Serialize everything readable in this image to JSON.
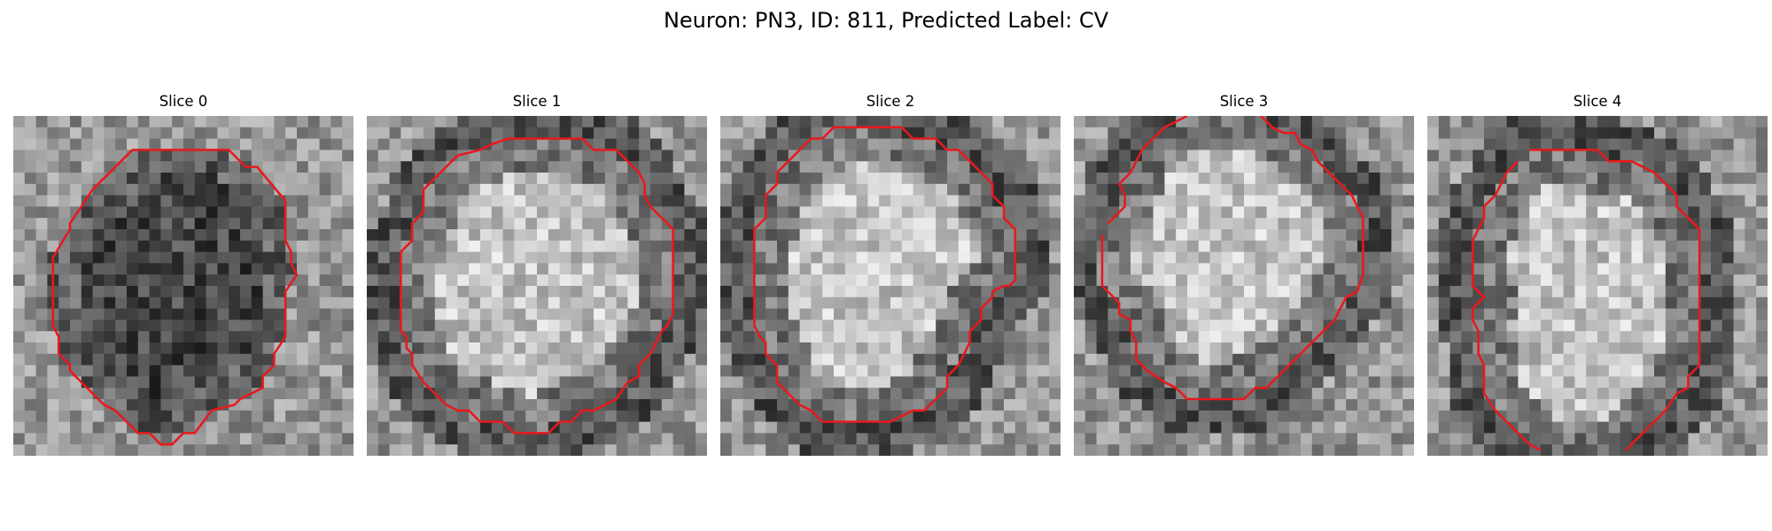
{
  "figure": {
    "title": "Neuron: PN3, ID: 811, Predicted Label: CV"
  },
  "slices": [
    {
      "title": "Slice 0",
      "interior_tone": "dark",
      "contour": [
        [
          10.5,
          3
        ],
        [
          19,
          3
        ],
        [
          20.5,
          4.5
        ],
        [
          21.5,
          4.5
        ],
        [
          24,
          7.5
        ],
        [
          24,
          11
        ],
        [
          24.5,
          12
        ],
        [
          24.5,
          13
        ],
        [
          25,
          14
        ],
        [
          24,
          15.5
        ],
        [
          24,
          19.5
        ],
        [
          23,
          21
        ],
        [
          23,
          22
        ],
        [
          22,
          23
        ],
        [
          22,
          24
        ],
        [
          20,
          25
        ],
        [
          19.5,
          25.5
        ],
        [
          17.5,
          26
        ],
        [
          16,
          28
        ],
        [
          15,
          28
        ],
        [
          14,
          29
        ],
        [
          13,
          29
        ],
        [
          12,
          28
        ],
        [
          11,
          28
        ],
        [
          10,
          27
        ],
        [
          9,
          26
        ],
        [
          8,
          25.5
        ],
        [
          5,
          22.5
        ],
        [
          5,
          22
        ],
        [
          4,
          21
        ],
        [
          4,
          19.5
        ],
        [
          3.5,
          18.5
        ],
        [
          3.5,
          12.5
        ],
        [
          5,
          10
        ],
        [
          5,
          9.5
        ],
        [
          6,
          8
        ],
        [
          7,
          6.5
        ],
        [
          10,
          3.5
        ]
      ]
    },
    {
      "title": "Slice 1",
      "interior_tone": "light",
      "contour": [
        [
          12.5,
          2
        ],
        [
          19,
          2
        ],
        [
          20,
          3
        ],
        [
          22,
          3
        ],
        [
          23,
          4
        ],
        [
          24,
          5
        ],
        [
          24.5,
          6
        ],
        [
          24.5,
          7
        ],
        [
          25,
          8
        ],
        [
          26,
          9
        ],
        [
          27,
          10
        ],
        [
          27,
          17.5
        ],
        [
          26.5,
          18.5
        ],
        [
          26,
          19
        ],
        [
          25,
          21
        ],
        [
          24,
          22
        ],
        [
          24,
          23
        ],
        [
          23,
          23.5
        ],
        [
          22,
          25
        ],
        [
          21,
          25.5
        ],
        [
          20,
          26
        ],
        [
          19,
          26
        ],
        [
          18,
          27
        ],
        [
          17,
          27
        ],
        [
          16,
          28
        ],
        [
          13,
          28
        ],
        [
          12,
          27
        ],
        [
          10,
          27
        ],
        [
          9,
          26
        ],
        [
          8,
          26
        ],
        [
          7,
          25.5
        ],
        [
          6,
          24.5
        ],
        [
          5,
          23.5
        ],
        [
          4,
          22
        ],
        [
          4,
          21
        ],
        [
          3.5,
          20.5
        ],
        [
          3.5,
          19.5
        ],
        [
          3,
          19
        ],
        [
          3,
          12
        ],
        [
          4,
          11
        ],
        [
          4,
          9.5
        ],
        [
          5,
          8.5
        ],
        [
          5,
          6.5
        ],
        [
          6,
          5.5
        ],
        [
          7,
          4.5
        ],
        [
          8,
          3.5
        ],
        [
          10,
          3
        ],
        [
          11,
          2.5
        ]
      ]
    },
    {
      "title": "Slice 2",
      "interior_tone": "light",
      "contour": [
        [
          10,
          1
        ],
        [
          16,
          1
        ],
        [
          17,
          2
        ],
        [
          19,
          2
        ],
        [
          20,
          3
        ],
        [
          21,
          3
        ],
        [
          22,
          4
        ],
        [
          23,
          5
        ],
        [
          24,
          6
        ],
        [
          24,
          7
        ],
        [
          25,
          8
        ],
        [
          25,
          9
        ],
        [
          26,
          10
        ],
        [
          26,
          14.5
        ],
        [
          25.5,
          15
        ],
        [
          25,
          15
        ],
        [
          24,
          15.5
        ],
        [
          24,
          16
        ],
        [
          23.5,
          16.5
        ],
        [
          23,
          17
        ],
        [
          23,
          18
        ],
        [
          22.5,
          18.5
        ],
        [
          22,
          19
        ],
        [
          22,
          20
        ],
        [
          21.5,
          21
        ],
        [
          21,
          22
        ],
        [
          20,
          23
        ],
        [
          20,
          24
        ],
        [
          19,
          25
        ],
        [
          18,
          26
        ],
        [
          17,
          26
        ],
        [
          16,
          26.5
        ],
        [
          15,
          27
        ],
        [
          9,
          27
        ],
        [
          8,
          26
        ],
        [
          7,
          25.5
        ],
        [
          6,
          24.5
        ],
        [
          5,
          23.5
        ],
        [
          5,
          22
        ],
        [
          4,
          21
        ],
        [
          4,
          20
        ],
        [
          3.5,
          19.5
        ],
        [
          3,
          18.5
        ],
        [
          3,
          10
        ],
        [
          4,
          9
        ],
        [
          4,
          7
        ],
        [
          5,
          6
        ],
        [
          5,
          5
        ],
        [
          6,
          4
        ],
        [
          7,
          3
        ],
        [
          8,
          2
        ],
        [
          9,
          2
        ]
      ]
    },
    {
      "title": "Slice 3",
      "interior_tone": "light",
      "contour": [
        [
          2.5,
          10.5
        ],
        [
          2.5,
          15
        ],
        [
          3,
          15.5
        ],
        [
          4,
          16.5
        ],
        [
          4,
          17.5
        ],
        [
          5,
          18
        ],
        [
          5,
          19
        ],
        [
          5.5,
          20
        ],
        [
          5.5,
          21.5
        ],
        [
          6.5,
          22.5
        ],
        [
          8,
          23.5
        ],
        [
          9,
          24
        ],
        [
          10,
          25
        ],
        [
          15,
          25
        ],
        [
          16,
          24
        ],
        [
          17,
          24
        ],
        [
          18,
          23
        ],
        [
          19,
          22
        ],
        [
          20,
          21
        ],
        [
          21,
          20
        ],
        [
          22,
          19
        ],
        [
          23,
          18
        ],
        [
          24,
          16
        ],
        [
          25,
          15.5
        ],
        [
          25.5,
          14
        ],
        [
          25.5,
          9
        ],
        [
          25,
          8
        ],
        [
          24.5,
          7
        ],
        [
          23,
          5.5
        ],
        [
          21.5,
          4
        ],
        [
          21,
          3
        ],
        [
          20,
          2.5
        ],
        [
          19.5,
          1.5
        ],
        [
          18.5,
          1.5
        ],
        [
          17.5,
          1
        ],
        [
          16.5,
          0
        ]
      ],
      "contour2": [
        [
          10,
          0
        ],
        [
          9,
          0.5
        ],
        [
          8,
          1
        ],
        [
          7,
          2
        ],
        [
          6,
          3
        ],
        [
          5.5,
          4
        ],
        [
          5,
          5
        ],
        [
          4,
          6
        ],
        [
          4.5,
          7
        ],
        [
          4.5,
          8
        ],
        [
          3,
          9.5
        ]
      ]
    },
    {
      "title": "Slice 4",
      "interior_tone": "light",
      "contour": [
        [
          9,
          3
        ],
        [
          15,
          3
        ],
        [
          16,
          4
        ],
        [
          18,
          4
        ],
        [
          20,
          5
        ],
        [
          21,
          6
        ],
        [
          22,
          7
        ],
        [
          22,
          8
        ],
        [
          23,
          9
        ],
        [
          24,
          10
        ],
        [
          24,
          22
        ],
        [
          23,
          23
        ],
        [
          23,
          24
        ],
        [
          22,
          24.5
        ],
        [
          21,
          26
        ],
        [
          20,
          27
        ],
        [
          19,
          28
        ],
        [
          18,
          29
        ],
        [
          17.5,
          29.5
        ]
      ],
      "contour2": [
        [
          10,
          29.5
        ],
        [
          9,
          29
        ],
        [
          8,
          28
        ],
        [
          7,
          27
        ],
        [
          6,
          26
        ],
        [
          5,
          24.5
        ],
        [
          5,
          22
        ],
        [
          4.5,
          21
        ],
        [
          4.5,
          19
        ],
        [
          4,
          18
        ],
        [
          4,
          17
        ],
        [
          5,
          16
        ],
        [
          4,
          15
        ],
        [
          4,
          11
        ],
        [
          4.5,
          10
        ],
        [
          5,
          9
        ],
        [
          5,
          8
        ],
        [
          6,
          7
        ],
        [
          7,
          5
        ],
        [
          8,
          4
        ]
      ]
    }
  ]
}
